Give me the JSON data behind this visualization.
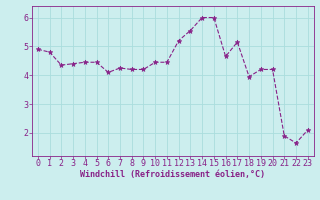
{
  "x": [
    0,
    1,
    2,
    3,
    4,
    5,
    6,
    7,
    8,
    9,
    10,
    11,
    12,
    13,
    14,
    15,
    16,
    17,
    18,
    19,
    20,
    21,
    22,
    23
  ],
  "y": [
    4.9,
    4.8,
    4.35,
    4.4,
    4.45,
    4.45,
    4.1,
    4.25,
    4.2,
    4.2,
    4.45,
    4.45,
    5.2,
    5.55,
    6.0,
    6.0,
    4.65,
    5.15,
    3.95,
    4.2,
    4.2,
    1.9,
    1.65,
    2.1
  ],
  "line_color": "#882288",
  "marker": "*",
  "marker_size": 3.5,
  "background_color": "#cceeee",
  "grid_color": "#aadddd",
  "xlabel": "Windchill (Refroidissement éolien,°C)",
  "xlabel_color": "#882288",
  "xlabel_fontsize": 6.0,
  "tick_color": "#882288",
  "tick_fontsize": 6.0,
  "ylim": [
    1.2,
    6.4
  ],
  "xlim": [
    -0.5,
    23.5
  ],
  "yticks": [
    2,
    3,
    4,
    5,
    6
  ],
  "xticks": [
    0,
    1,
    2,
    3,
    4,
    5,
    6,
    7,
    8,
    9,
    10,
    11,
    12,
    13,
    14,
    15,
    16,
    17,
    18,
    19,
    20,
    21,
    22,
    23
  ],
  "xtick_labels": [
    "0",
    "1",
    "2",
    "3",
    "4",
    "5",
    "6",
    "7",
    "8",
    "9",
    "10",
    "11",
    "12",
    "13",
    "14",
    "15",
    "16",
    "17",
    "18",
    "19",
    "20",
    "21",
    "22",
    "23"
  ]
}
